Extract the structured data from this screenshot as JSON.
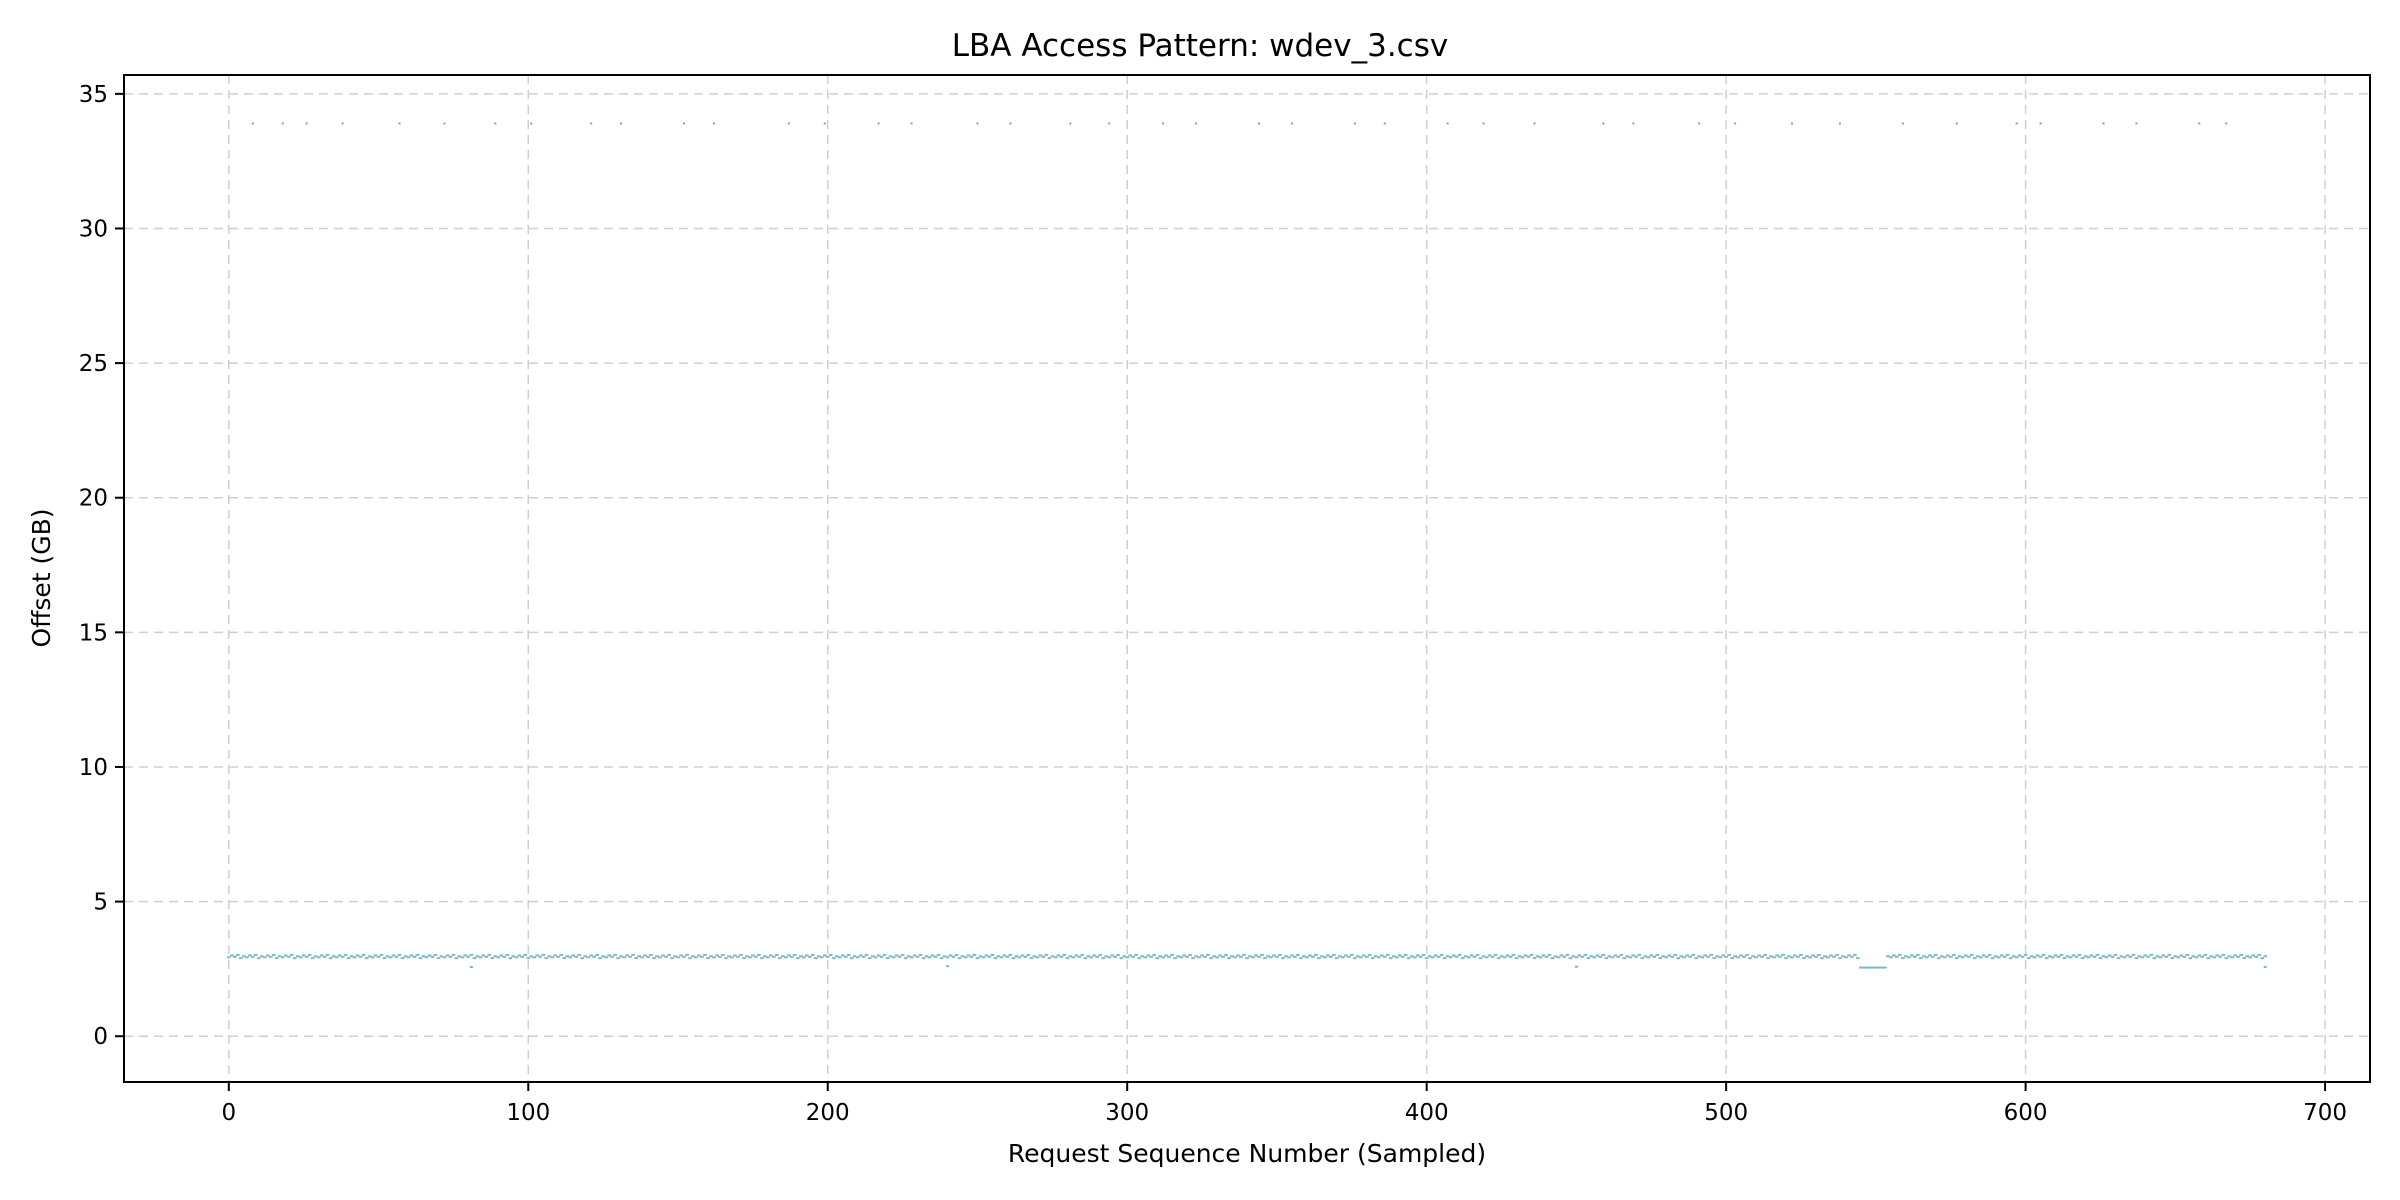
{
  "chart_data": {
    "type": "scatter",
    "title": "LBA Access Pattern: wdev_3.csv",
    "xlabel": "Request Sequence Number (Sampled)",
    "ylabel": "Offset (GB)",
    "xlim": [
      -35,
      715
    ],
    "ylim": [
      -1.7,
      35.7
    ],
    "xticks": [
      0,
      100,
      200,
      300,
      400,
      500,
      600,
      700
    ],
    "yticks": [
      0,
      5,
      10,
      15,
      20,
      25,
      30,
      35
    ],
    "grid": true,
    "legend": "none",
    "colors": {
      "main": "#7ab9cc",
      "outlier": "#999999"
    },
    "series": [
      {
        "marker": "point",
        "x_range": [
          0,
          680
        ],
        "baseline_values": [
          2.93,
          3.0,
          2.95,
          3.02,
          2.9,
          2.97
        ],
        "low_band": {
          "x": [
            545,
            553
          ],
          "y": 2.55
        },
        "low_points": [
          [
            81,
            2.57
          ],
          [
            240,
            2.6
          ],
          [
            450,
            2.58
          ],
          [
            680,
            2.57
          ]
        ]
      },
      {
        "marker": "point",
        "x": [
          8,
          18,
          26,
          38,
          57,
          72,
          89,
          101,
          121,
          131,
          152,
          162,
          187,
          199,
          217,
          228,
          250,
          261,
          281,
          294,
          312,
          323,
          344,
          355,
          376,
          386,
          407,
          419,
          436,
          459,
          469,
          491,
          503,
          522,
          538,
          559,
          577,
          597,
          605,
          626,
          637,
          658,
          667
        ],
        "y_value": 33.9
      }
    ]
  }
}
